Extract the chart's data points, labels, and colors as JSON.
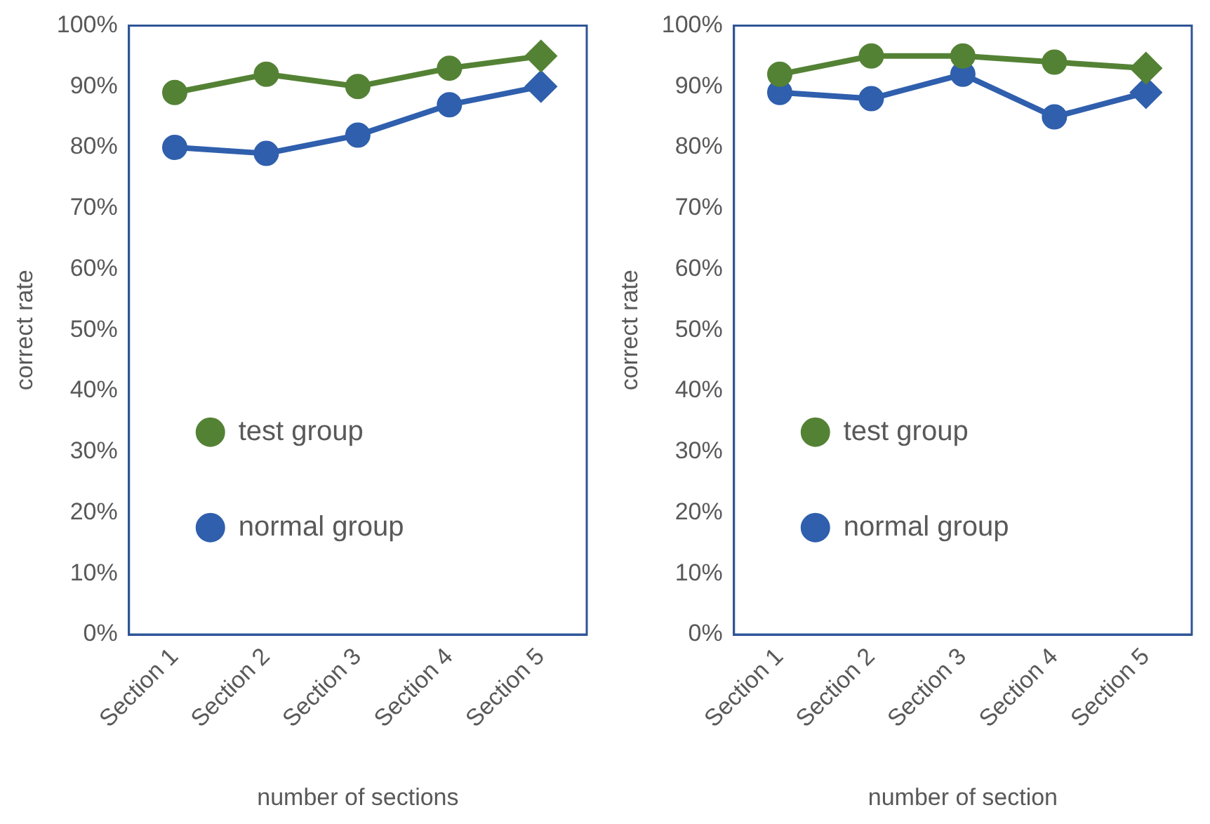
{
  "chart_data": [
    {
      "type": "line",
      "xlabel": "number of sections",
      "ylabel": "correct rate",
      "categories": [
        "Section 1",
        "Section 2",
        "Section 3",
        "Section 4",
        "Section 5"
      ],
      "series": [
        {
          "name": "test group",
          "color": "#548235",
          "values": [
            89,
            92,
            90,
            93,
            95
          ]
        },
        {
          "name": "normal group",
          "color": "#2f5fad",
          "values": [
            80,
            79,
            82,
            87,
            90
          ]
        }
      ],
      "ylim": [
        0,
        100
      ],
      "yticks": [
        {
          "value": 0,
          "label": "0%"
        },
        {
          "value": 10,
          "label": "10%"
        },
        {
          "value": 20,
          "label": "20%"
        },
        {
          "value": 30,
          "label": "30%"
        },
        {
          "value": 40,
          "label": "40%"
        },
        {
          "value": 50,
          "label": "50%"
        },
        {
          "value": 60,
          "label": "60%"
        },
        {
          "value": 70,
          "label": "70%"
        },
        {
          "value": 80,
          "label": "80%"
        },
        {
          "value": 90,
          "label": "90%"
        },
        {
          "value": 100,
          "label": "100%"
        }
      ],
      "grid": false,
      "legend": "bottom left",
      "marker": "circle",
      "line_style": "solid"
    },
    {
      "type": "line",
      "xlabel": "number of section",
      "ylabel": "correct rate",
      "categories": [
        "Section 1",
        "Section 2",
        "Section 3",
        "Section 4",
        "Section 5"
      ],
      "series": [
        {
          "name": "test group",
          "color": "#548235",
          "values": [
            92,
            95,
            95,
            94,
            93
          ]
        },
        {
          "name": "normal group",
          "color": "#2f5fad",
          "values": [
            89,
            88,
            92,
            85,
            89
          ]
        }
      ],
      "ylim": [
        0,
        100
      ],
      "yticks": [
        {
          "value": 0,
          "label": "0%"
        },
        {
          "value": 10,
          "label": "10%"
        },
        {
          "value": 20,
          "label": "20%"
        },
        {
          "value": 30,
          "label": "30%"
        },
        {
          "value": 40,
          "label": "40%"
        },
        {
          "value": 50,
          "label": "50%"
        },
        {
          "value": 60,
          "label": "60%"
        },
        {
          "value": 70,
          "label": "70%"
        },
        {
          "value": 80,
          "label": "80%"
        },
        {
          "value": 90,
          "label": "90%"
        },
        {
          "value": 100,
          "label": "100%"
        }
      ],
      "grid": false,
      "legend": "bottom left",
      "marker": "circle",
      "line_style": "solid"
    }
  ]
}
